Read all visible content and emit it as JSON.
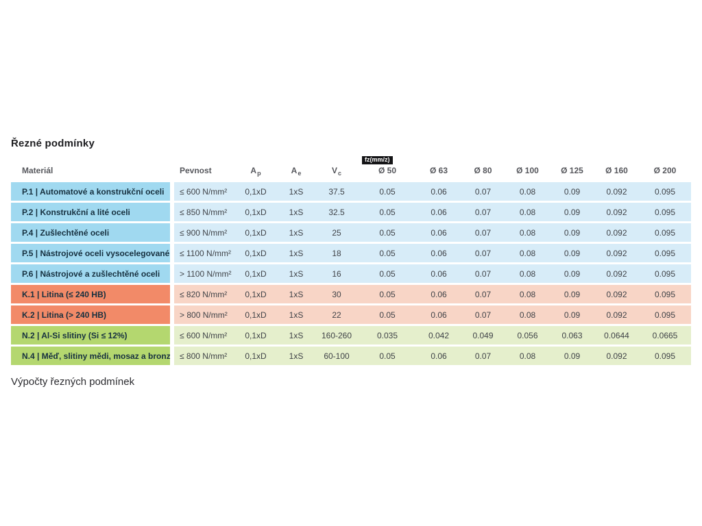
{
  "page": {
    "title": "Řezné podmínky",
    "footer_text": "Výpočty řezných podmínek"
  },
  "table": {
    "fz_badge": "fz(mm/z)",
    "headers": {
      "material": "Materiál",
      "pevnost": "Pevnost",
      "ap": {
        "main": "A",
        "sub": "p"
      },
      "ae": {
        "main": "A",
        "sub": "e"
      },
      "vc": {
        "main": "V",
        "sub": "c"
      },
      "diameters": [
        "Ø 50",
        "Ø 63",
        "Ø 80",
        "Ø 100",
        "Ø 125",
        "Ø 160",
        "Ø 200"
      ]
    },
    "rows": [
      {
        "group": "p",
        "material": "P.1 | Automatové a konstrukční oceli",
        "pevnost": "≤ 600 N/mm²",
        "ap": "0,1xD",
        "ae": "1xS",
        "vc": "37.5",
        "fz": [
          "0.05",
          "0.06",
          "0.07",
          "0.08",
          "0.09",
          "0.092",
          "0.095"
        ]
      },
      {
        "group": "p",
        "material": "P.2 | Konstrukční a lité oceli",
        "pevnost": "≤ 850 N/mm²",
        "ap": "0,1xD",
        "ae": "1xS",
        "vc": "32.5",
        "fz": [
          "0.05",
          "0.06",
          "0.07",
          "0.08",
          "0.09",
          "0.092",
          "0.095"
        ]
      },
      {
        "group": "p",
        "material": "P.4 | Zušlechtěné oceli",
        "pevnost": "≤ 900 N/mm²",
        "ap": "0,1xD",
        "ae": "1xS",
        "vc": "25",
        "fz": [
          "0.05",
          "0.06",
          "0.07",
          "0.08",
          "0.09",
          "0.092",
          "0.095"
        ]
      },
      {
        "group": "p",
        "material": "P.5 | Nástrojové oceli vysocelegované",
        "pevnost": "≤ 1100 N/mm²",
        "ap": "0,1xD",
        "ae": "1xS",
        "vc": "18",
        "fz": [
          "0.05",
          "0.06",
          "0.07",
          "0.08",
          "0.09",
          "0.092",
          "0.095"
        ]
      },
      {
        "group": "p",
        "material": "P.6 | Nástrojové a zušlechtěné oceli",
        "pevnost": "> 1100 N/mm²",
        "ap": "0,1xD",
        "ae": "1xS",
        "vc": "16",
        "fz": [
          "0.05",
          "0.06",
          "0.07",
          "0.08",
          "0.09",
          "0.092",
          "0.095"
        ]
      },
      {
        "group": "k",
        "material": "K.1 | Litina (≤ 240 HB)",
        "pevnost": "≤ 820 N/mm²",
        "ap": "0,1xD",
        "ae": "1xS",
        "vc": "30",
        "fz": [
          "0.05",
          "0.06",
          "0.07",
          "0.08",
          "0.09",
          "0.092",
          "0.095"
        ]
      },
      {
        "group": "k",
        "material": "K.2 | Litina (> 240 HB)",
        "pevnost": "> 800 N/mm²",
        "ap": "0,1xD",
        "ae": "1xS",
        "vc": "22",
        "fz": [
          "0.05",
          "0.06",
          "0.07",
          "0.08",
          "0.09",
          "0.092",
          "0.095"
        ]
      },
      {
        "group": "n",
        "material": "N.2 | Al-Si slitiny (Si ≤ 12%)",
        "pevnost": "≤ 600 N/mm²",
        "ap": "0,1xD",
        "ae": "1xS",
        "vc": "160-260",
        "fz": [
          "0.035",
          "0.042",
          "0.049",
          "0.056",
          "0.063",
          "0.0644",
          "0.0665"
        ]
      },
      {
        "group": "n",
        "material": "N.4 | Měď, slitiny mědi, mosaz a bronz",
        "pevnost": "≤ 800 N/mm²",
        "ap": "0,1xD",
        "ae": "1xS",
        "vc": "60-100",
        "fz": [
          "0.05",
          "0.06",
          "0.07",
          "0.08",
          "0.09",
          "0.092",
          "0.095"
        ]
      }
    ],
    "colors": {
      "p_label": "#a0d9f0",
      "p_cell": "#d7ecf8",
      "k_label": "#f28a68",
      "k_cell": "#f8d5c6",
      "n_label": "#b4d76f",
      "n_cell": "#e5efcc",
      "badge_bg": "#141416",
      "header_text": "#56575c"
    }
  }
}
